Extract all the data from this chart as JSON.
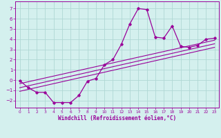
{
  "xlabel": "Windchill (Refroidissement éolien,°C)",
  "bg_color": "#d4f0ee",
  "line_color": "#990099",
  "grid_color": "#b0d8d4",
  "xlim": [
    -0.5,
    23.5
  ],
  "ylim": [
    -2.7,
    7.7
  ],
  "xticks": [
    0,
    1,
    2,
    3,
    4,
    5,
    6,
    7,
    8,
    9,
    10,
    11,
    12,
    13,
    14,
    15,
    16,
    17,
    18,
    19,
    20,
    21,
    22,
    23
  ],
  "yticks": [
    -2,
    -1,
    0,
    1,
    2,
    3,
    4,
    5,
    6,
    7
  ],
  "curve_x": [
    0,
    1,
    2,
    3,
    4,
    5,
    6,
    7,
    8,
    9,
    10,
    11,
    12,
    13,
    14,
    15,
    16,
    17,
    18,
    19,
    20,
    21,
    22,
    23
  ],
  "curve_y": [
    -0.05,
    -0.75,
    -1.2,
    -1.2,
    -2.2,
    -2.2,
    -2.2,
    -1.5,
    -0.1,
    0.15,
    1.5,
    2.0,
    3.5,
    5.5,
    7.0,
    6.9,
    4.2,
    4.1,
    5.3,
    3.3,
    3.2,
    3.4,
    4.0,
    4.1
  ],
  "line1_x": [
    0,
    23
  ],
  "line1_y": [
    -1.1,
    3.2
  ],
  "line2_x": [
    0,
    23
  ],
  "line2_y": [
    -0.75,
    3.55
  ],
  "line3_x": [
    0,
    23
  ],
  "line3_y": [
    -0.35,
    3.9
  ]
}
